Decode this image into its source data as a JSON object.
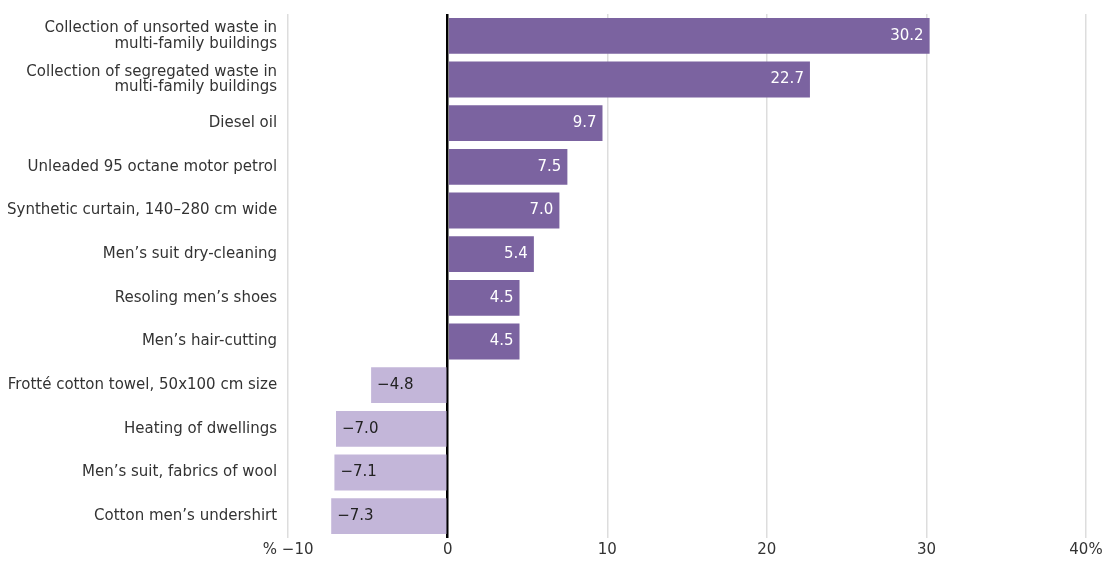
{
  "chart_data": {
    "type": "bar",
    "orientation": "horizontal",
    "categories": [
      "Collection of unsorted waste in multi-family buildings",
      "Collection of segregated waste in multi-family buildings",
      "Diesel oil",
      "Unleaded 95 octane motor petrol",
      "Synthetic curtain, 140–280 cm wide",
      "Men’s suit dry-cleaning",
      "Resoling men’s shoes",
      "Men’s hair-cutting",
      "Frotté cotton towel, 50x100 cm size",
      "Heating of dwellings",
      "Men’s suit, fabrics of wool",
      "Cotton men’s undershirt"
    ],
    "values": [
      30.2,
      22.7,
      9.7,
      7.5,
      7.0,
      5.4,
      4.5,
      4.5,
      -4.8,
      -7.0,
      -7.1,
      -7.3
    ],
    "value_labels": [
      "30.2",
      "22.7",
      "9.7",
      "7.5",
      "7.0",
      "5.4",
      "4.5",
      "4.5",
      "−4.8",
      "−7.0",
      "−7.1",
      "−7.3"
    ],
    "colors": [
      "#7b63a0",
      "#7b63a0",
      "#7b63a0",
      "#7b63a0",
      "#7b63a0",
      "#7b63a0",
      "#7b63a0",
      "#7b63a0",
      "#c3b6d9",
      "#c3b6d9",
      "#c3b6d9",
      "#c3b6d9"
    ],
    "xlim": [
      -10,
      40
    ],
    "xticks": [
      {
        "value": -10,
        "label": "% −10"
      },
      0,
      10,
      20,
      30,
      {
        "value": 40,
        "label": "40%"
      }
    ],
    "grid": "x",
    "legend": false
  }
}
